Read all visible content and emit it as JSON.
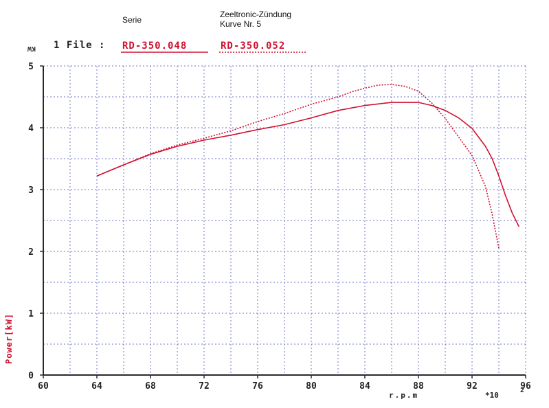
{
  "header": {
    "box_left": "Serie",
    "box_right_line1": "Zeeltronic-Zündung",
    "box_right_line2": "Kurve Nr. 5",
    "file_title": "1 File :",
    "file_1": "RD-350.048",
    "file_2": "RD-350.052",
    "unit_top": "KW"
  },
  "axis_labels": {
    "ylabel": "Power[kW]",
    "xlabel": "r.p.m",
    "multiplier": "*10",
    "multiplier_exp": "2"
  },
  "chart_data": {
    "type": "line",
    "title": "",
    "xlabel": "r.p.m",
    "ylabel": "Power[kW]",
    "xlim": [
      60,
      96
    ],
    "ylim": [
      0,
      5
    ],
    "x_ticks": [
      60,
      64,
      68,
      72,
      76,
      80,
      84,
      88,
      92,
      96
    ],
    "y_ticks": [
      0,
      1,
      2,
      3,
      4,
      5
    ],
    "grid": true,
    "legend": "top",
    "series": [
      {
        "name": "RD-350.048",
        "style": "solid",
        "color": "#d01030",
        "x": [
          64,
          66,
          68,
          70,
          72,
          74,
          76,
          78,
          80,
          82,
          84,
          86,
          88,
          89,
          90,
          91,
          92,
          93,
          93.5,
          94,
          94.5,
          95,
          95.5
        ],
        "y": [
          3.22,
          3.4,
          3.57,
          3.7,
          3.8,
          3.88,
          3.97,
          4.05,
          4.16,
          4.28,
          4.36,
          4.41,
          4.41,
          4.36,
          4.28,
          4.16,
          3.99,
          3.7,
          3.5,
          3.22,
          2.9,
          2.62,
          2.4
        ]
      },
      {
        "name": "RD-350.052",
        "style": "dotted",
        "color": "#d01030",
        "x": [
          64,
          66,
          68,
          70,
          72,
          74,
          76,
          78,
          80,
          82,
          83,
          84,
          85,
          86,
          87,
          88,
          89,
          90,
          91,
          91.5,
          92,
          92.5,
          93,
          93.5,
          94
        ],
        "y": [
          3.22,
          3.4,
          3.58,
          3.72,
          3.83,
          3.95,
          4.1,
          4.23,
          4.38,
          4.5,
          4.58,
          4.64,
          4.69,
          4.7,
          4.67,
          4.59,
          4.4,
          4.15,
          3.85,
          3.7,
          3.55,
          3.3,
          3.05,
          2.6,
          2.05
        ]
      }
    ]
  }
}
